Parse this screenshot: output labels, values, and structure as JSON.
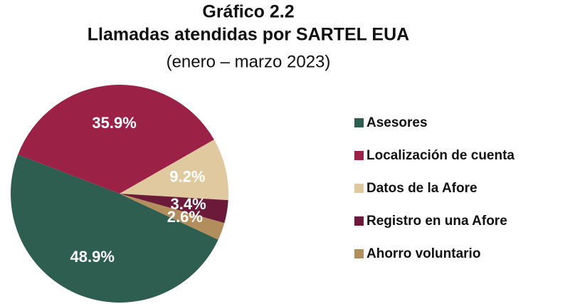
{
  "chart_data": {
    "type": "pie",
    "title": "Gráfico 2.2",
    "subtitle": "Llamadas atendidas por SARTEL EUA",
    "period": "(enero – marzo 2023)",
    "categories": [
      "Asesores",
      "Localización de cuenta",
      "Datos de la Afore",
      "Registro en una Afore",
      "Ahorro voluntario"
    ],
    "values": [
      48.9,
      35.9,
      9.2,
      3.4,
      2.6
    ],
    "value_labels": [
      "48.9%",
      "35.9%",
      "9.2%",
      "3.4%",
      "2.6%"
    ],
    "colors": [
      "#2d5e4f",
      "#9b2246",
      "#e0c99e",
      "#6b1a3a",
      "#b38e5d"
    ],
    "legend": "right"
  }
}
